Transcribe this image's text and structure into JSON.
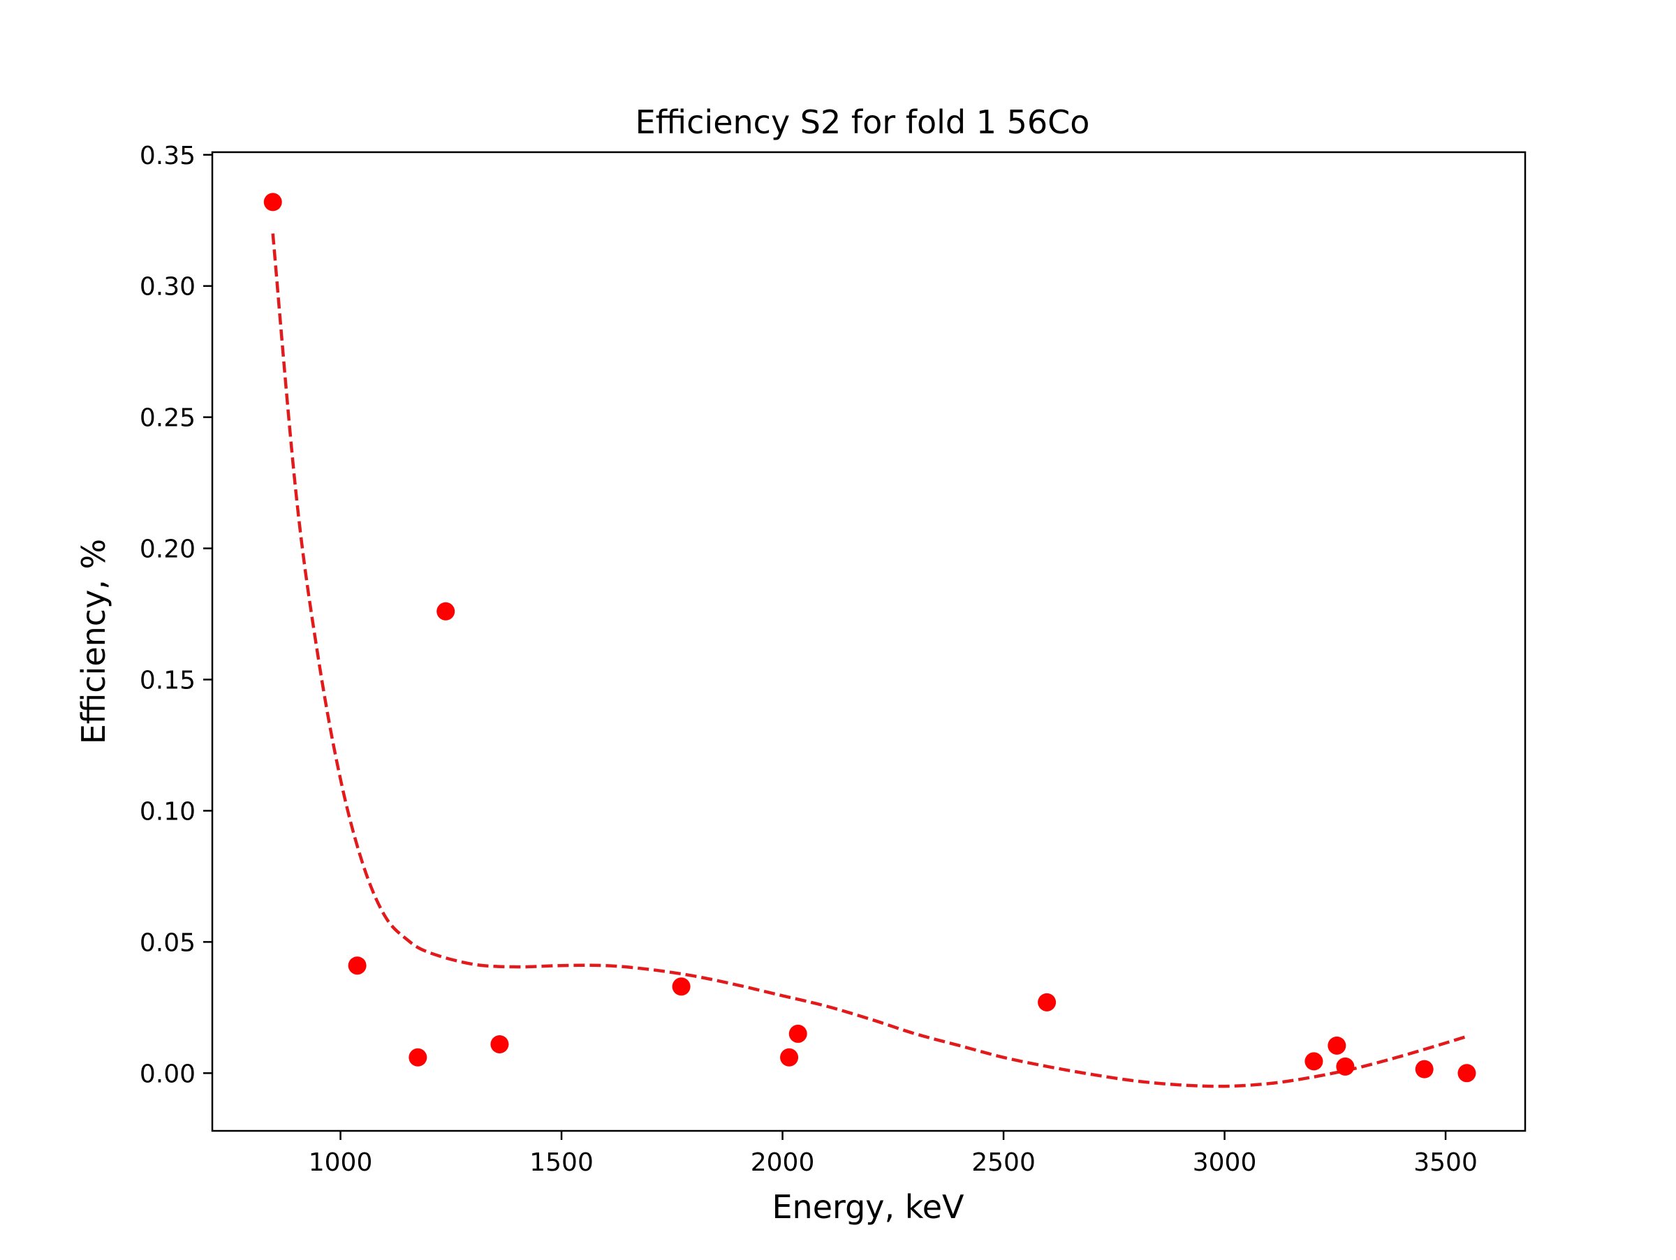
{
  "chart_data": {
    "type": "scatter",
    "title": "Efficiency S2 for fold 1 56Co",
    "xlabel": "Energy, keV",
    "ylabel": "Efficiency, %",
    "xlim": [
      710,
      3680
    ],
    "ylim": [
      -0.022,
      0.351
    ],
    "xticks": [
      1000,
      1500,
      2000,
      2500,
      3000,
      3500
    ],
    "yticks": [
      0.0,
      0.05,
      0.1,
      0.15,
      0.2,
      0.25,
      0.3,
      0.35
    ],
    "xtick_labels": [
      "1000",
      "1500",
      "2000",
      "2500",
      "3000",
      "3500"
    ],
    "ytick_labels": [
      "0.00",
      "0.05",
      "0.10",
      "0.15",
      "0.20",
      "0.25",
      "0.30",
      "0.35"
    ],
    "grid": false,
    "marker_color": "#ff0000",
    "fit_color": "#e31a1c",
    "points": [
      {
        "x": 847,
        "y": 0.332
      },
      {
        "x": 1038,
        "y": 0.041
      },
      {
        "x": 1175,
        "y": 0.006
      },
      {
        "x": 1238,
        "y": 0.176
      },
      {
        "x": 1360,
        "y": 0.011
      },
      {
        "x": 1771,
        "y": 0.033
      },
      {
        "x": 2015,
        "y": 0.006
      },
      {
        "x": 2035,
        "y": 0.015
      },
      {
        "x": 2598,
        "y": 0.027
      },
      {
        "x": 3202,
        "y": 0.0045
      },
      {
        "x": 3254,
        "y": 0.0105
      },
      {
        "x": 3273,
        "y": 0.0025
      },
      {
        "x": 3452,
        "y": 0.0015
      },
      {
        "x": 3548,
        "y": 0.0
      }
    ],
    "fit_curve": [
      {
        "x": 847,
        "y": 0.32
      },
      {
        "x": 900,
        "y": 0.22
      },
      {
        "x": 950,
        "y": 0.158
      },
      {
        "x": 1000,
        "y": 0.112
      },
      {
        "x": 1050,
        "y": 0.08
      },
      {
        "x": 1100,
        "y": 0.06
      },
      {
        "x": 1150,
        "y": 0.051
      },
      {
        "x": 1200,
        "y": 0.046
      },
      {
        "x": 1300,
        "y": 0.0415
      },
      {
        "x": 1400,
        "y": 0.0405
      },
      {
        "x": 1500,
        "y": 0.041
      },
      {
        "x": 1600,
        "y": 0.041
      },
      {
        "x": 1700,
        "y": 0.0395
      },
      {
        "x": 1800,
        "y": 0.037
      },
      {
        "x": 1900,
        "y": 0.0335
      },
      {
        "x": 2000,
        "y": 0.0295
      },
      {
        "x": 2100,
        "y": 0.0255
      },
      {
        "x": 2200,
        "y": 0.0205
      },
      {
        "x": 2300,
        "y": 0.015
      },
      {
        "x": 2400,
        "y": 0.0105
      },
      {
        "x": 2500,
        "y": 0.006
      },
      {
        "x": 2600,
        "y": 0.0025
      },
      {
        "x": 2700,
        "y": -0.0005
      },
      {
        "x": 2800,
        "y": -0.003
      },
      {
        "x": 2900,
        "y": -0.0045
      },
      {
        "x": 3000,
        "y": -0.005
      },
      {
        "x": 3100,
        "y": -0.004
      },
      {
        "x": 3200,
        "y": -0.0015
      },
      {
        "x": 3300,
        "y": 0.002
      },
      {
        "x": 3400,
        "y": 0.0065
      },
      {
        "x": 3500,
        "y": 0.0115
      },
      {
        "x": 3548,
        "y": 0.014
      }
    ]
  }
}
